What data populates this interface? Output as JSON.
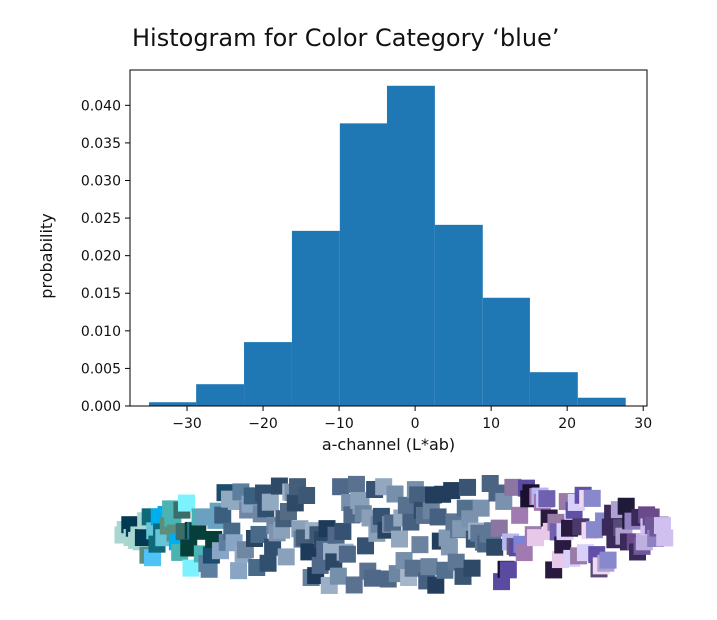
{
  "chart_data": {
    "type": "bar",
    "title": "Histogram for Color Category ‘blue’",
    "xlabel": "a-channel (L*ab)",
    "ylabel": "probability",
    "bins": [
      {
        "x0": -35.0,
        "x1": -28.8,
        "value": 0.0005
      },
      {
        "x0": -28.8,
        "x1": -22.5,
        "value": 0.0029
      },
      {
        "x0": -22.5,
        "x1": -16.2,
        "value": 0.0085
      },
      {
        "x0": -16.2,
        "x1": -9.9,
        "value": 0.0233
      },
      {
        "x0": -9.9,
        "x1": -3.7,
        "value": 0.0376
      },
      {
        "x0": -3.7,
        "x1": 2.6,
        "value": 0.0426
      },
      {
        "x0": 2.6,
        "x1": 8.9,
        "value": 0.0241
      },
      {
        "x0": 8.9,
        "x1": 15.1,
        "value": 0.0144
      },
      {
        "x0": 15.1,
        "x1": 21.4,
        "value": 0.0045
      },
      {
        "x0": 21.4,
        "x1": 27.7,
        "value": 0.0011
      }
    ],
    "xlim": [
      -37.5,
      30.5
    ],
    "ylim": [
      0,
      0.0447
    ],
    "xticks": [
      -30,
      -20,
      -10,
      0,
      10,
      20,
      30
    ],
    "xtick_labels": [
      "−30",
      "−20",
      "−10",
      "0",
      "10",
      "20",
      "30"
    ],
    "yticks": [
      0,
      0.005,
      0.01,
      0.015,
      0.02,
      0.025,
      0.03,
      0.035,
      0.04
    ],
    "ytick_labels": [
      "0.000",
      "0.005",
      "0.010",
      "0.015",
      "0.020",
      "0.025",
      "0.030",
      "0.035",
      "0.040"
    ],
    "grid": false,
    "bar_color": "#1f77b4"
  },
  "swatches": {
    "colors": [
      "#a9d6d0",
      "#06144a",
      "#4fc3f7",
      "#013a52",
      "#0e6a78",
      "#66c4d8",
      "#5b8e7d",
      "#3a6e6a",
      "#00aef0",
      "#7df2ff",
      "#4cb3b3",
      "#063f3a",
      "#0b2a22",
      "#2a6f8c",
      "#6aa0c0",
      "#1d4d6d",
      "#5c7fa0",
      "#88a5c5",
      "#3b5f7f",
      "#4a6a8a",
      "#92a9c2",
      "#31506f",
      "#6f87a3",
      "#294562",
      "#7c94b0",
      "#556b85",
      "#2f4a66",
      "#8aa1bb",
      "#445d79",
      "#a0b2c8",
      "#1e3a5a",
      "#67809c",
      "#3d5875",
      "#9bb0c6",
      "#50688a",
      "#2c4866",
      "#768fab",
      "#5a7290",
      "#365272",
      "#89a0b8",
      "#4f6888",
      "#6d86a2",
      "#2a4260",
      "#93a8bf",
      "#3f5a78",
      "#7690ac",
      "#58718f",
      "#324d6b",
      "#a4b6ca",
      "#466180",
      "#6b839f",
      "#223e5c",
      "#8199b3",
      "#53708e",
      "#3a5473",
      "#9cb1c7",
      "#5e7794",
      "#2e4967",
      "#7a92ae",
      "#4b6483",
      "#6a5c78",
      "#8a76a0",
      "#7c82d6",
      "#5a4aa0",
      "#1a1030",
      "#b8b8f0",
      "#a07ab0",
      "#c8c8ff",
      "#7060b0",
      "#e8c8e8",
      "#2a1a40",
      "#9a7aa6",
      "#4a3a6a",
      "#d8d0f8",
      "#6050a8",
      "#f0d8f0",
      "#0a0010",
      "#8888cc",
      "#5a4a7a",
      "#b0a0d0",
      "#3a2a5a",
      "#c0b0e0",
      "#6a4a8a",
      "#9080c0",
      "#201a3a",
      "#a890c8",
      "#705898",
      "#d0c0f0"
    ]
  }
}
